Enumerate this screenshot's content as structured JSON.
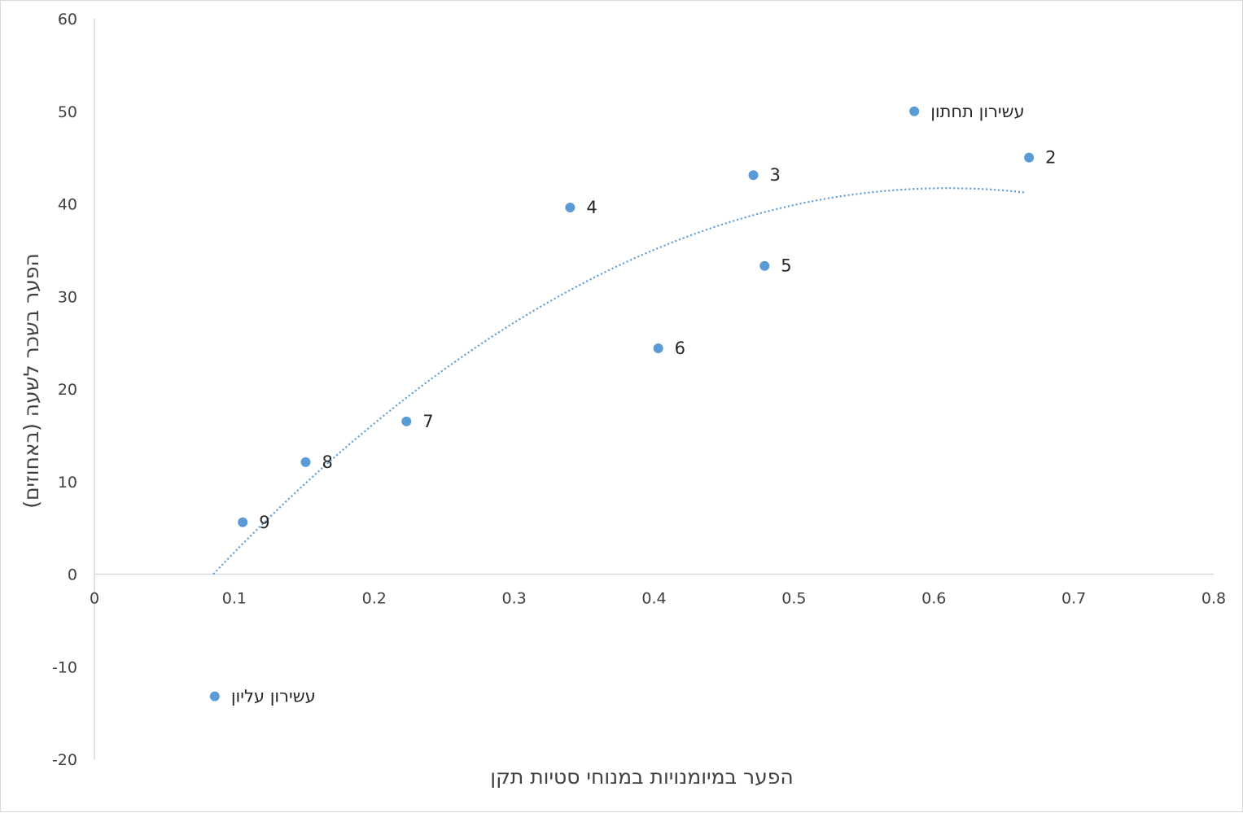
{
  "chart_data": {
    "type": "scatter",
    "xlabel": "הפער במיומנויות במנוחי סטיות תקן",
    "ylabel": "הפער בשכר לשעה (באחוזים)",
    "xlim": [
      0,
      0.8
    ],
    "ylim": [
      -20,
      60
    ],
    "x_ticks": [
      "0",
      "0.1",
      "0.2",
      "0.3",
      "0.4",
      "0.5",
      "0.6",
      "0.7",
      "0.8"
    ],
    "y_ticks": [
      "-20",
      "-10",
      "0",
      "10",
      "20",
      "30",
      "40",
      "50",
      "60"
    ],
    "grid": false,
    "legend": "none",
    "marker_color": "#5b9bd5",
    "points": [
      {
        "label": "עשירון תחתון",
        "x": 0.586,
        "y": 50.0
      },
      {
        "label": "2",
        "x": 0.668,
        "y": 45.0
      },
      {
        "label": "3",
        "x": 0.471,
        "y": 43.1
      },
      {
        "label": "4",
        "x": 0.34,
        "y": 39.6
      },
      {
        "label": "5",
        "x": 0.479,
        "y": 33.3
      },
      {
        "label": "6",
        "x": 0.403,
        "y": 24.4
      },
      {
        "label": "7",
        "x": 0.223,
        "y": 16.5
      },
      {
        "label": "8",
        "x": 0.151,
        "y": 12.1
      },
      {
        "label": "9",
        "x": 0.106,
        "y": 5.6
      },
      {
        "label": "עשירון עליון",
        "x": 0.086,
        "y": -13.2
      }
    ],
    "trendline": {
      "type": "polynomial-2",
      "style": "dotted",
      "color": "#5b9bd5",
      "x_range": [
        0.085,
        0.665
      ],
      "coefficients": [
        -151.5,
        184.7,
        -14.6
      ]
    }
  }
}
